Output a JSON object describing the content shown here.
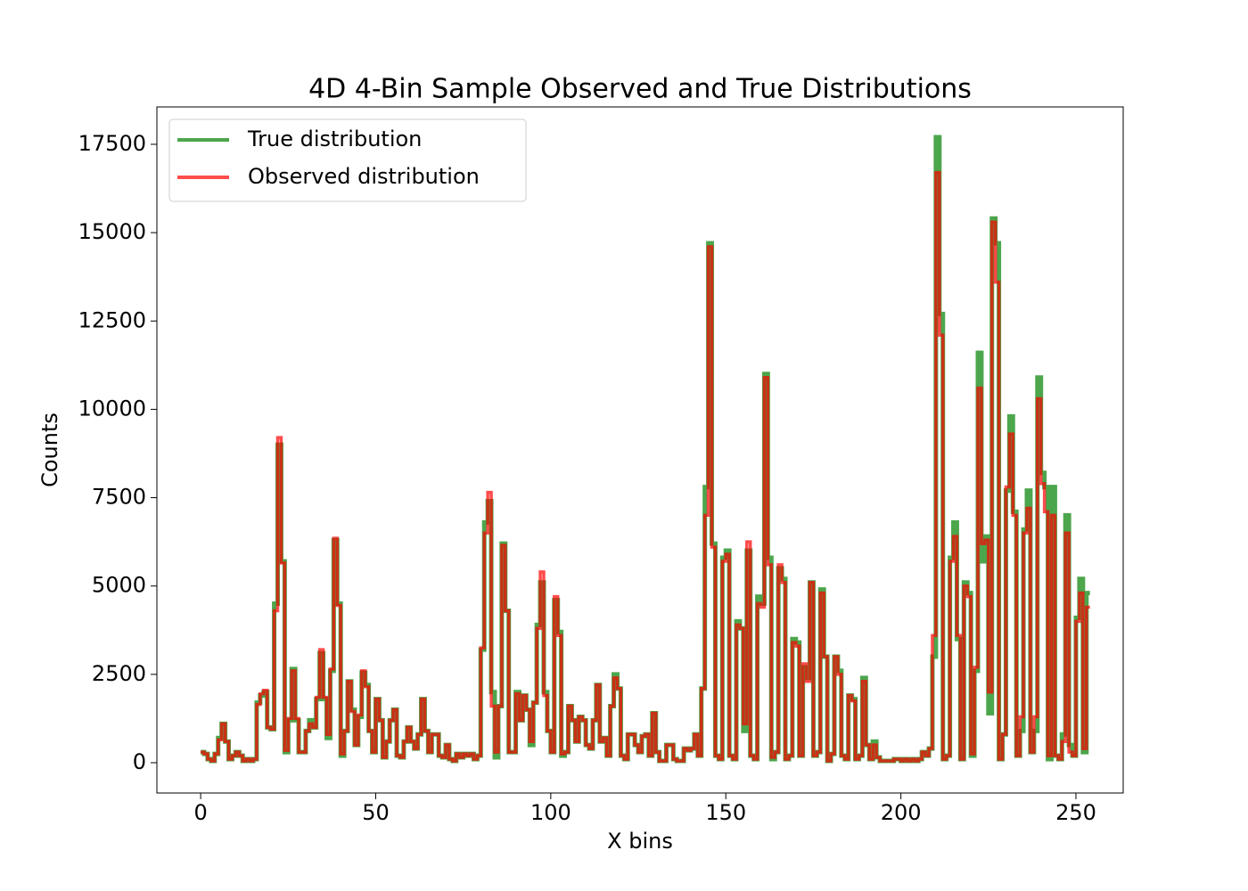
{
  "chart_data": {
    "type": "step",
    "title": "4D 4-Bin Sample Observed and True Distributions",
    "xlabel": "X bins",
    "ylabel": "Counts",
    "xlim": [
      -12.5,
      263.5
    ],
    "xticks": [
      0,
      50,
      100,
      150,
      200,
      250
    ],
    "ylim": [
      -857,
      18558
    ],
    "yticks": [
      0,
      2500,
      5000,
      7500,
      10000,
      12500,
      15000,
      17500
    ],
    "legend": "upper left",
    "series": [
      {
        "name": "True distribution",
        "color": "#008000",
        "values": [
          300,
          250,
          100,
          50,
          250,
          700,
          1100,
          600,
          100,
          200,
          300,
          200,
          50,
          100,
          50,
          100,
          1700,
          1900,
          2000,
          1000,
          950,
          4500,
          9000,
          5700,
          300,
          1200,
          2650,
          1200,
          300,
          300,
          900,
          1200,
          1000,
          1800,
          3100,
          1800,
          700,
          2600,
          6300,
          4500,
          200,
          900,
          2300,
          1500,
          500,
          1300,
          2550,
          2200,
          900,
          300,
          1800,
          1200,
          150,
          600,
          1200,
          1500,
          200,
          150,
          600,
          1000,
          600,
          400,
          800,
          1800,
          900,
          300,
          800,
          800,
          200,
          150,
          500,
          100,
          50,
          250,
          150,
          250,
          200,
          250,
          100,
          200,
          3200,
          6800,
          7400,
          2000,
          150,
          1600,
          6200,
          4300,
          300,
          300,
          2000,
          1200,
          1900,
          1500,
          500,
          1700,
          3900,
          5100,
          2000,
          900,
          300,
          4600,
          3700,
          200,
          300,
          1600,
          1200,
          600,
          1300,
          1200,
          500,
          400,
          1200,
          2200,
          600,
          700,
          200,
          1600,
          2500,
          2100,
          200,
          100,
          800,
          800,
          500,
          300,
          750,
          800,
          200,
          1400,
          300,
          50,
          50,
          500,
          500,
          100,
          50,
          50,
          400,
          350,
          400,
          800,
          200,
          2100,
          7800,
          14700,
          6200,
          200,
          100,
          5800,
          6000,
          200,
          100,
          4000,
          3800,
          900,
          6000,
          200,
          100,
          4700,
          4500,
          11000,
          5800,
          100,
          300,
          5500,
          5200,
          100,
          200,
          3500,
          3400,
          200,
          2700,
          2400,
          5100,
          200,
          300,
          4900,
          3000,
          50,
          250,
          3000,
          2600,
          200,
          100,
          1900,
          1800,
          100,
          200,
          2400,
          500,
          100,
          600,
          150,
          50,
          50,
          50,
          50,
          100,
          100,
          50,
          100,
          50,
          100,
          50,
          100,
          300,
          200,
          400,
          3000,
          17700,
          12700,
          100,
          200,
          5800,
          6800,
          3500,
          100,
          5100,
          4800,
          200,
          2600,
          11600,
          5700,
          6400,
          1400,
          15400,
          14700,
          100,
          800,
          7700,
          9800,
          7100,
          200,
          900,
          6600,
          7700,
          300,
          900,
          10900,
          8200,
          7800,
          100,
          7800,
          200,
          100,
          800,
          7000,
          500,
          200,
          4100,
          5200,
          300,
          4800
        ]
      },
      {
        "name": "Observed distribution",
        "color": "#ff0000",
        "values": [
          300,
          250,
          100,
          50,
          250,
          650,
          1100,
          600,
          100,
          200,
          300,
          200,
          50,
          100,
          50,
          100,
          1650,
          1950,
          2050,
          1000,
          950,
          4300,
          9200,
          5650,
          350,
          1250,
          2600,
          1250,
          300,
          300,
          900,
          1100,
          1000,
          1850,
          3200,
          1850,
          800,
          2650,
          6350,
          4450,
          250,
          900,
          2300,
          1450,
          500,
          1350,
          2600,
          2150,
          900,
          300,
          1800,
          1200,
          150,
          600,
          1200,
          1500,
          200,
          150,
          600,
          1000,
          600,
          400,
          800,
          1800,
          900,
          300,
          800,
          800,
          200,
          150,
          500,
          100,
          50,
          250,
          150,
          250,
          200,
          250,
          100,
          200,
          3250,
          6500,
          7650,
          1600,
          300,
          1600,
          6150,
          4300,
          300,
          300,
          1950,
          1200,
          1900,
          1500,
          600,
          1700,
          3800,
          5400,
          1900,
          900,
          300,
          4700,
          3600,
          250,
          300,
          1600,
          1200,
          600,
          1300,
          1200,
          500,
          400,
          1200,
          2200,
          600,
          700,
          200,
          1600,
          2400,
          2100,
          200,
          100,
          800,
          800,
          500,
          300,
          750,
          800,
          200,
          1400,
          300,
          50,
          50,
          500,
          500,
          100,
          50,
          50,
          400,
          350,
          400,
          800,
          200,
          2100,
          7000,
          14600,
          6100,
          200,
          100,
          5700,
          5900,
          200,
          100,
          3900,
          3800,
          1100,
          6250,
          200,
          100,
          4500,
          4400,
          10900,
          5600,
          150,
          300,
          5600,
          5100,
          100,
          200,
          3400,
          3300,
          200,
          2800,
          2300,
          5100,
          200,
          300,
          4800,
          3000,
          50,
          250,
          3000,
          2500,
          200,
          100,
          1900,
          1750,
          100,
          200,
          2300,
          500,
          100,
          500,
          150,
          50,
          50,
          50,
          50,
          100,
          100,
          50,
          100,
          50,
          100,
          50,
          100,
          300,
          200,
          400,
          3600,
          16700,
          12100,
          100,
          200,
          5700,
          6400,
          3600,
          100,
          5000,
          4700,
          250,
          2700,
          10600,
          6200,
          6300,
          2000,
          15300,
          13600,
          100,
          800,
          7800,
          9300,
          7000,
          200,
          1300,
          6500,
          7200,
          300,
          1300,
          10300,
          7900,
          7100,
          200,
          7000,
          200,
          100,
          600,
          6500,
          300,
          200,
          4000,
          4800,
          400,
          4400
        ]
      }
    ]
  }
}
